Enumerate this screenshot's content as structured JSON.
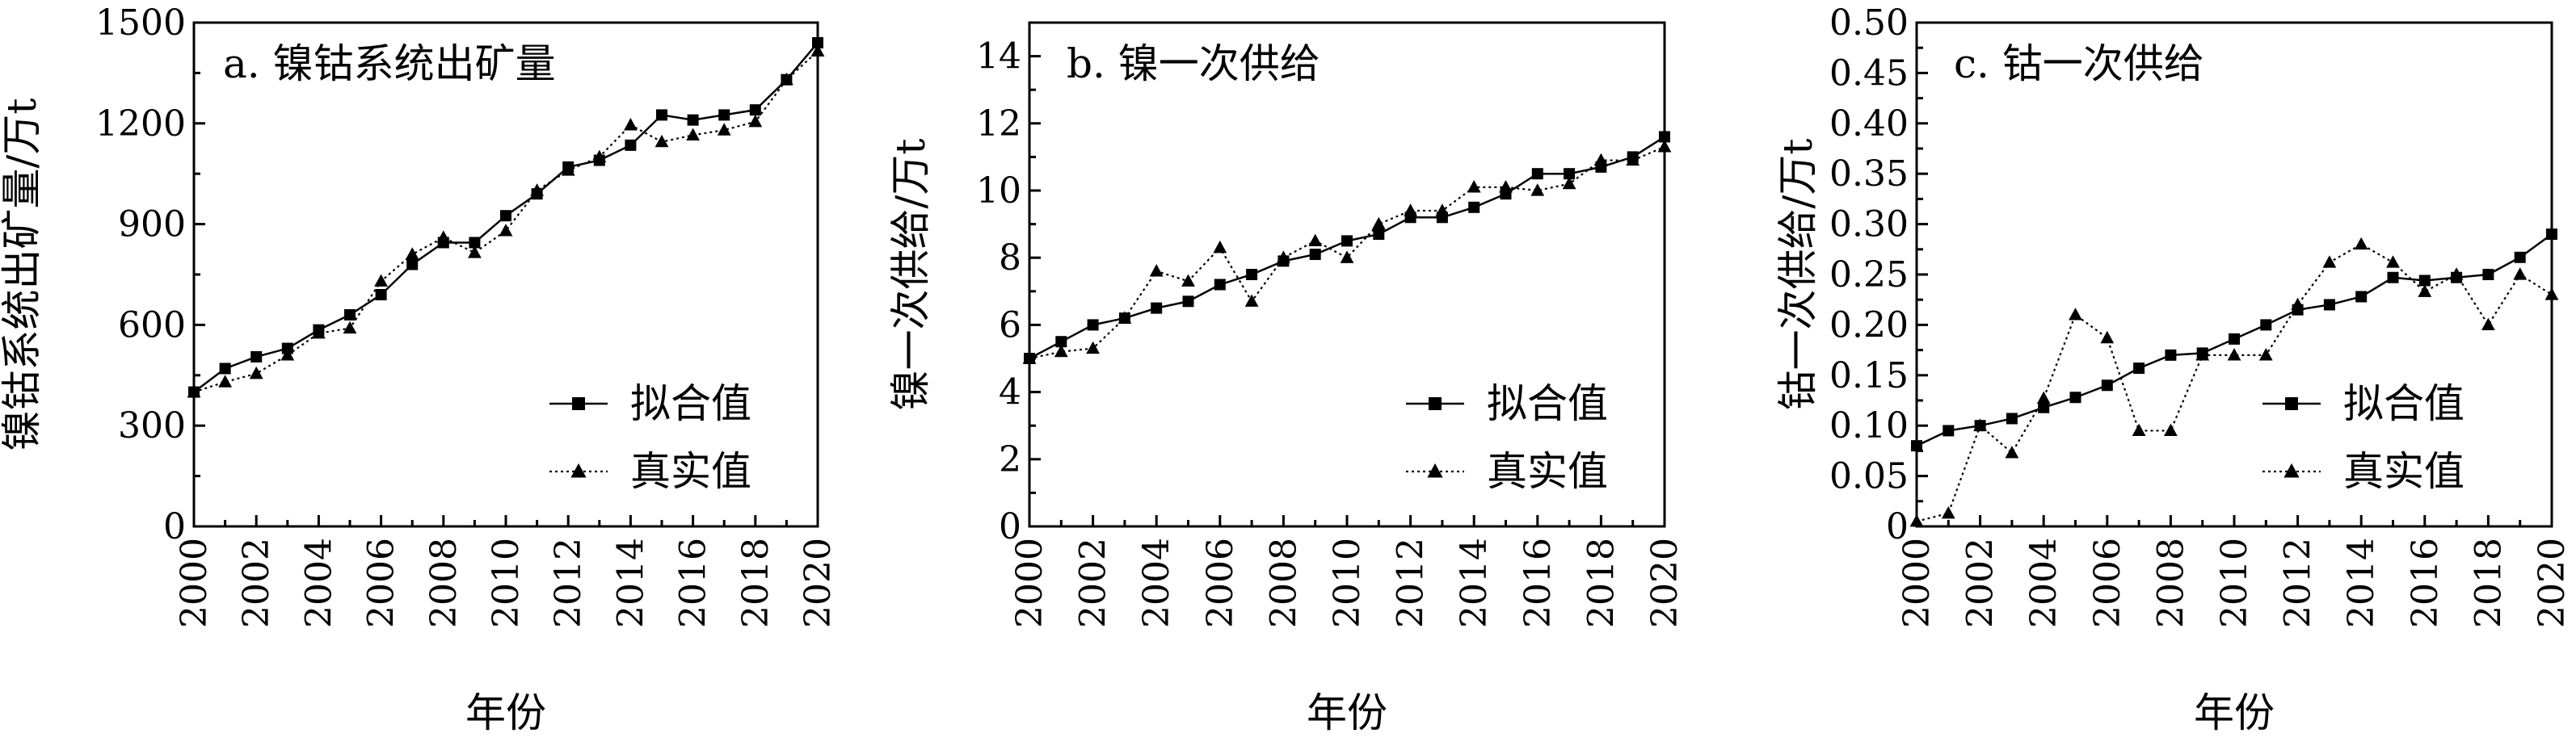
{
  "chart_data": [
    {
      "type": "line",
      "title": "a. 镍钴系统出矿量",
      "xlabel": "年份",
      "ylabel": "镍钴系统出矿量/万t",
      "x": [
        2000,
        2001,
        2002,
        2003,
        2004,
        2005,
        2006,
        2007,
        2008,
        2009,
        2010,
        2011,
        2012,
        2013,
        2014,
        2015,
        2016,
        2017,
        2018,
        2019,
        2020
      ],
      "xticks": [
        "2000",
        "2002",
        "2004",
        "2006",
        "2008",
        "2010",
        "2012",
        "2014",
        "2016",
        "2018",
        "2020"
      ],
      "ylim": [
        0,
        1500
      ],
      "yticks": [
        "0",
        "300",
        "600",
        "900",
        "1200",
        "1500"
      ],
      "legend_position": "bottom-right",
      "series": [
        {
          "name": "拟合值",
          "marker": "square",
          "line": "solid",
          "values": [
            400,
            470,
            505,
            530,
            585,
            630,
            690,
            780,
            845,
            845,
            925,
            990,
            1070,
            1090,
            1135,
            1225,
            1210,
            1225,
            1240,
            1330,
            1440
          ]
        },
        {
          "name": "真实值",
          "marker": "triangle",
          "line": "dotted",
          "values": [
            400,
            430,
            455,
            510,
            575,
            590,
            730,
            810,
            860,
            815,
            880,
            1000,
            1060,
            1100,
            1195,
            1145,
            1165,
            1180,
            1205,
            1330,
            1415
          ]
        }
      ]
    },
    {
      "type": "line",
      "title": "b. 镍一次供给",
      "xlabel": "年份",
      "ylabel": "镍一次供给/万t",
      "x": [
        2000,
        2001,
        2002,
        2003,
        2004,
        2005,
        2006,
        2007,
        2008,
        2009,
        2010,
        2011,
        2012,
        2013,
        2014,
        2015,
        2016,
        2017,
        2018,
        2019,
        2020
      ],
      "xticks": [
        "2000",
        "2002",
        "2004",
        "2006",
        "2008",
        "2010",
        "2012",
        "2014",
        "2016",
        "2018",
        "2020"
      ],
      "ylim": [
        0,
        15
      ],
      "yticks": [
        "0",
        "2",
        "4",
        "6",
        "8",
        "10",
        "12",
        "14"
      ],
      "legend_position": "bottom-right",
      "series": [
        {
          "name": "拟合值",
          "marker": "square",
          "line": "solid",
          "values": [
            5.0,
            5.5,
            6.0,
            6.2,
            6.5,
            6.7,
            7.2,
            7.5,
            7.9,
            8.1,
            8.5,
            8.7,
            9.2,
            9.2,
            9.5,
            9.9,
            10.5,
            10.5,
            10.7,
            11.0,
            11.6
          ]
        },
        {
          "name": "真实值",
          "marker": "triangle",
          "line": "dotted",
          "values": [
            5.0,
            5.2,
            5.3,
            6.2,
            7.6,
            7.3,
            8.3,
            6.7,
            8.0,
            8.5,
            8.0,
            9.0,
            9.4,
            9.4,
            10.1,
            10.1,
            10.0,
            10.2,
            10.9,
            10.9,
            11.3
          ]
        }
      ]
    },
    {
      "type": "line",
      "title": "c. 钴一次供给",
      "xlabel": "年份",
      "ylabel": "钴一次供给/万t",
      "x": [
        2000,
        2001,
        2002,
        2003,
        2004,
        2005,
        2006,
        2007,
        2008,
        2009,
        2010,
        2011,
        2012,
        2013,
        2014,
        2015,
        2016,
        2017,
        2018,
        2019,
        2020
      ],
      "xticks": [
        "2000",
        "2002",
        "2004",
        "2006",
        "2008",
        "2010",
        "2012",
        "2014",
        "2016",
        "2018",
        "2020"
      ],
      "ylim": [
        0,
        0.5
      ],
      "yticks": [
        "0",
        "0.05",
        "0.10",
        "0.15",
        "0.20",
        "0.25",
        "0.30",
        "0.35",
        "0.40",
        "0.45",
        "0.50"
      ],
      "legend_position": "bottom-right",
      "series": [
        {
          "name": "拟合值",
          "marker": "square",
          "line": "solid",
          "values": [
            0.08,
            0.095,
            0.1,
            0.107,
            0.118,
            0.128,
            0.14,
            0.157,
            0.17,
            0.172,
            0.186,
            0.2,
            0.215,
            0.22,
            0.228,
            0.247,
            0.244,
            0.247,
            0.25,
            0.267,
            0.29
          ]
        },
        {
          "name": "真实值",
          "marker": "triangle",
          "line": "dotted",
          "values": [
            0.005,
            0.013,
            0.1,
            0.073,
            0.127,
            0.21,
            0.187,
            0.095,
            0.095,
            0.17,
            0.17,
            0.17,
            0.22,
            0.262,
            0.28,
            0.262,
            0.233,
            0.25,
            0.2,
            0.25,
            0.23
          ]
        }
      ]
    }
  ]
}
